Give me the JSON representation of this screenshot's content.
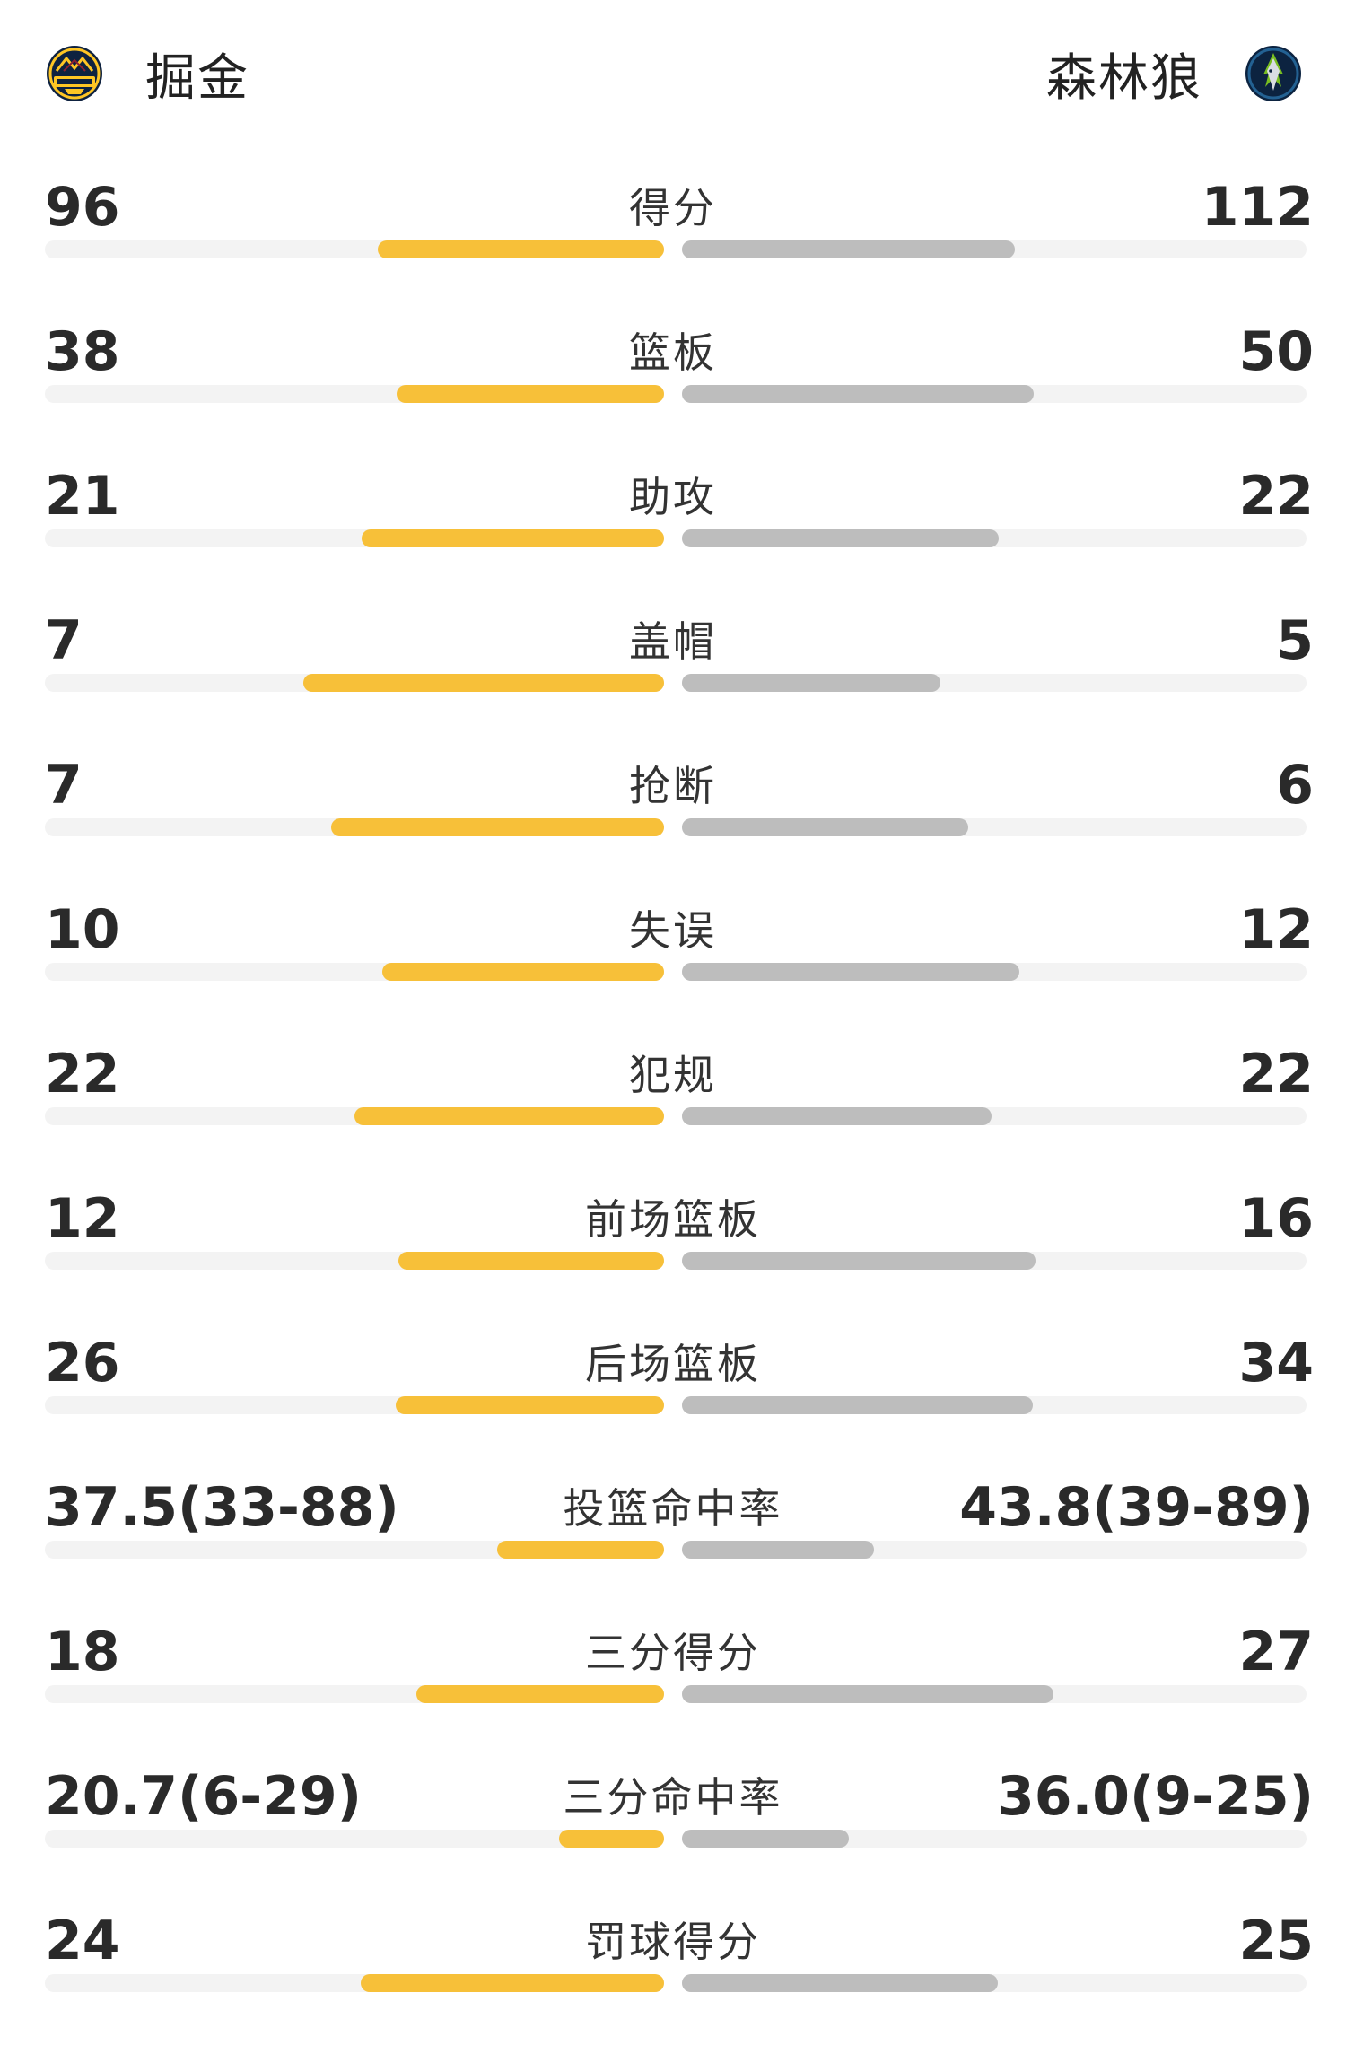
{
  "header": {
    "home_team": "掘金",
    "away_team": "森林狼",
    "home_logo_icon": "nuggets-logo-icon",
    "away_logo_icon": "timberwolves-logo-icon"
  },
  "colors": {
    "home_bar": "#f7c039",
    "away_bar": "#bdbdbd",
    "track": "#f3f3f3"
  },
  "stats": [
    {
      "label": "得分",
      "home": "96",
      "away": "112",
      "home_share": 0.462,
      "away_share": 0.538
    },
    {
      "label": "篮板",
      "home": "38",
      "away": "50",
      "home_share": 0.432,
      "away_share": 0.568
    },
    {
      "label": "助攻",
      "home": "21",
      "away": "22",
      "home_share": 0.488,
      "away_share": 0.512
    },
    {
      "label": "盖帽",
      "home": "7",
      "away": "5",
      "home_share": 0.583,
      "away_share": 0.417
    },
    {
      "label": "抢断",
      "home": "7",
      "away": "6",
      "home_share": 0.538,
      "away_share": 0.462
    },
    {
      "label": "失误",
      "home": "10",
      "away": "12",
      "home_share": 0.455,
      "away_share": 0.545
    },
    {
      "label": "犯规",
      "home": "22",
      "away": "22",
      "home_share": 0.5,
      "away_share": 0.5
    },
    {
      "label": "前场篮板",
      "home": "12",
      "away": "16",
      "home_share": 0.429,
      "away_share": 0.571
    },
    {
      "label": "后场篮板",
      "home": "26",
      "away": "34",
      "home_share": 0.433,
      "away_share": 0.567
    },
    {
      "label": "投篮命中率",
      "home": "37.5(33-88)",
      "away": "43.8(39-89)",
      "home_share": 0.27,
      "away_share": 0.31
    },
    {
      "label": "三分得分",
      "home": "18",
      "away": "27",
      "home_share": 0.4,
      "away_share": 0.6
    },
    {
      "label": "三分命中率",
      "home": "20.7(6-29)",
      "away": "36.0(9-25)",
      "home_share": 0.17,
      "away_share": 0.27
    },
    {
      "label": "罚球得分",
      "home": "24",
      "away": "25",
      "home_share": 0.49,
      "away_share": 0.51
    }
  ]
}
